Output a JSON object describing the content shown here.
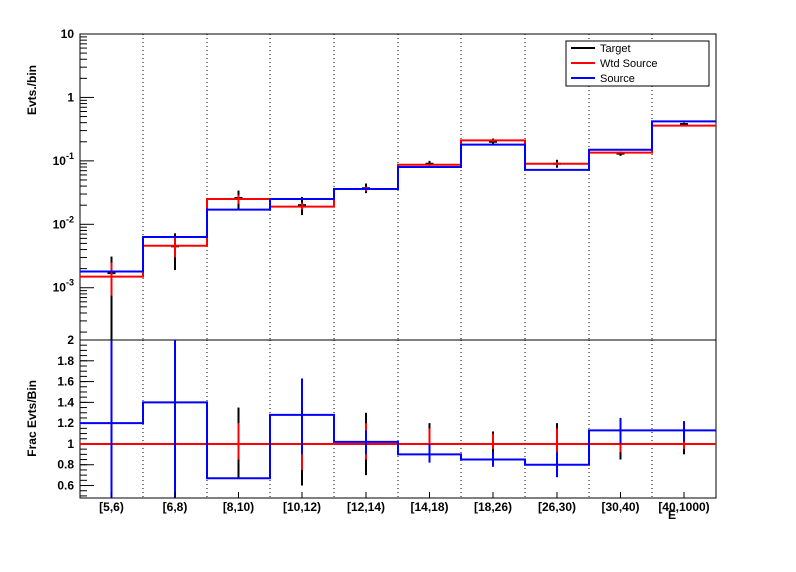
{
  "chart_data": [
    {
      "type": "step",
      "scale": "log",
      "ylabel": "Evts./bin",
      "ylim": [
        0.00015,
        10
      ],
      "yticks": [
        {
          "v": 10,
          "m": "10",
          "e": ""
        },
        {
          "v": 1,
          "m": "1",
          "e": ""
        },
        {
          "v": 0.1,
          "m": "10",
          "e": "-1"
        },
        {
          "v": 0.01,
          "m": "10",
          "e": "-2"
        },
        {
          "v": 0.001,
          "m": "10",
          "e": "-3"
        }
      ],
      "categories": [
        "[5,6)",
        "[6,8)",
        "[8,10)",
        "[10,12)",
        "[12,14)",
        "[14,18)",
        "[18,26)",
        "[26,30)",
        "[30,40)",
        "[40,1000)"
      ],
      "legend": {
        "position": "top-right",
        "entries": [
          "Target",
          "Wtd Source",
          "Source"
        ]
      },
      "series": [
        {
          "name": "Target",
          "color": "#000000",
          "values": [
            0.0017,
            0.0045,
            0.026,
            0.02,
            0.037,
            0.09,
            0.2,
            0.09,
            0.13,
            0.38
          ],
          "err_low": [
            0.00015,
            0.0019,
            0.017,
            0.014,
            0.031,
            0.08,
            0.175,
            0.078,
            0.12,
            0.36
          ],
          "err_high": [
            0.0031,
            0.0072,
            0.034,
            0.027,
            0.044,
            0.1,
            0.225,
            0.104,
            0.14,
            0.4
          ]
        },
        {
          "name": "Wtd Source",
          "color": "#ff0000",
          "values": [
            0.0015,
            0.0046,
            0.025,
            0.019,
            0.036,
            0.087,
            0.21,
            0.09,
            0.135,
            0.36
          ],
          "err_low": [
            0.00075,
            0.003,
            0.021,
            0.017,
            0.033,
            0.083,
            0.2,
            0.085,
            0.13,
            0.35
          ],
          "err_high": [
            0.0025,
            0.0062,
            0.029,
            0.022,
            0.039,
            0.091,
            0.22,
            0.095,
            0.14,
            0.37
          ]
        },
        {
          "name": "Source",
          "color": "#0000ff",
          "values": [
            0.0018,
            0.0063,
            0.017,
            0.025,
            0.036,
            0.08,
            0.18,
            0.072,
            0.15,
            0.42
          ]
        }
      ]
    },
    {
      "type": "step",
      "ylabel": "Frac Evts/Bin",
      "ylim": [
        0.48,
        2.0
      ],
      "yticks": [
        {
          "v": 0.6,
          "m": "0.6"
        },
        {
          "v": 0.8,
          "m": "0.8"
        },
        {
          "v": 1,
          "m": "1"
        },
        {
          "v": 1.2,
          "m": "1.2"
        },
        {
          "v": 1.4,
          "m": "1.4"
        },
        {
          "v": 1.6,
          "m": "1.6"
        },
        {
          "v": 1.8,
          "m": "1.8"
        },
        {
          "v": 2,
          "m": "2"
        }
      ],
      "categories": [
        "[5,6)",
        "[6,8)",
        "[8,10)",
        "[10,12)",
        "[12,14)",
        "[14,18)",
        "[18,26)",
        "[26,30)",
        "[30,40)",
        "[40,1000)"
      ],
      "xlabel": "E",
      "series": [
        {
          "name": "Target",
          "color": "#000000",
          "values": [
            1,
            1,
            1,
            1,
            1,
            1,
            1,
            1,
            1,
            1
          ],
          "err_low": [
            1,
            1,
            0.67,
            0.6,
            0.7,
            0.85,
            0.9,
            0.82,
            0.85,
            0.9
          ],
          "err_high": [
            1,
            1,
            1.35,
            1.3,
            1.3,
            1.2,
            1.12,
            1.2,
            1.15,
            1.2
          ]
        },
        {
          "name": "Wtd Source",
          "color": "#ff0000",
          "values": [
            1,
            1,
            1,
            1,
            1,
            1,
            1,
            1,
            1,
            1
          ],
          "err_low": [
            1,
            1,
            0.85,
            0.75,
            0.85,
            0.92,
            0.95,
            0.9,
            0.92,
            0.95
          ],
          "err_high": [
            1,
            1,
            1.2,
            1.15,
            1.2,
            1.15,
            1.1,
            1.15,
            1.1,
            1.15
          ]
        },
        {
          "name": "Source",
          "color": "#0000ff",
          "values": [
            1.2,
            1.4,
            0.67,
            1.28,
            1.02,
            0.9,
            0.85,
            0.8,
            1.13,
            1.13
          ],
          "err_low": [
            0.48,
            0.48,
            0.67,
            0.9,
            0.9,
            0.82,
            0.78,
            0.68,
            1.0,
            1.02
          ],
          "err_high": [
            2.0,
            2.0,
            0.67,
            1.63,
            1.13,
            1.0,
            0.92,
            0.92,
            1.25,
            1.22
          ]
        }
      ]
    }
  ]
}
